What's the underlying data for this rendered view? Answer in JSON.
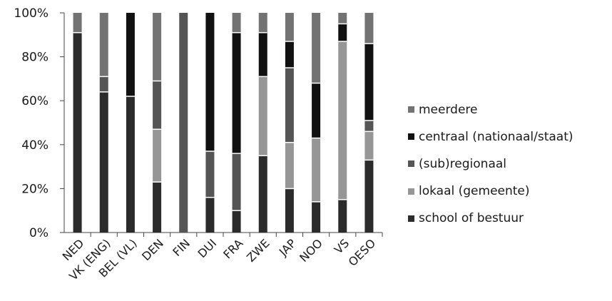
{
  "chart_data": {
    "type": "bar",
    "stacked": true,
    "normalized": true,
    "title": "",
    "xlabel": "",
    "ylabel": "",
    "ylim": [
      0,
      100
    ],
    "yticks": [
      "0%",
      "20%",
      "40%",
      "60%",
      "80%",
      "100%"
    ],
    "grid": false,
    "legend_position": "right",
    "categories": [
      "NED",
      "VK (ENG)",
      "BEL (VL)",
      "DEN",
      "FIN",
      "DUI",
      "FRA",
      "ZWE",
      "JAP",
      "NOO",
      "VS",
      "OESO"
    ],
    "series": [
      {
        "name": "school of bestuur",
        "color": "#2b2b2b",
        "values": [
          91,
          64,
          62,
          23,
          0,
          16,
          10,
          35,
          20,
          14,
          15,
          33
        ]
      },
      {
        "name": "lokaal (gemeente)",
        "color": "#969696",
        "values": [
          0,
          0,
          0,
          24,
          0,
          0,
          0,
          36,
          21,
          29,
          72,
          13
        ]
      },
      {
        "name": "(sub)regionaal",
        "color": "#555555",
        "values": [
          0,
          7,
          0,
          22,
          100,
          21,
          26,
          0,
          34,
          0,
          0,
          5
        ]
      },
      {
        "name": "centraal (nationaal/staat)",
        "color": "#111111",
        "values": [
          0,
          0,
          38,
          0,
          0,
          63,
          55,
          20,
          12,
          25,
          8,
          35
        ]
      },
      {
        "name": "meerdere",
        "color": "#737373",
        "values": [
          9,
          29,
          0,
          31,
          0,
          0,
          9,
          9,
          13,
          32,
          5,
          14
        ]
      }
    ]
  },
  "legend": {
    "items": [
      {
        "label": "meerdere",
        "color": "#737373"
      },
      {
        "label": "centraal (nationaal/staat)",
        "color": "#111111"
      },
      {
        "label": "(sub)regionaal",
        "color": "#555555"
      },
      {
        "label": "lokaal (gemeente)",
        "color": "#969696"
      },
      {
        "label": "school of bestuur",
        "color": "#2b2b2b"
      }
    ]
  }
}
